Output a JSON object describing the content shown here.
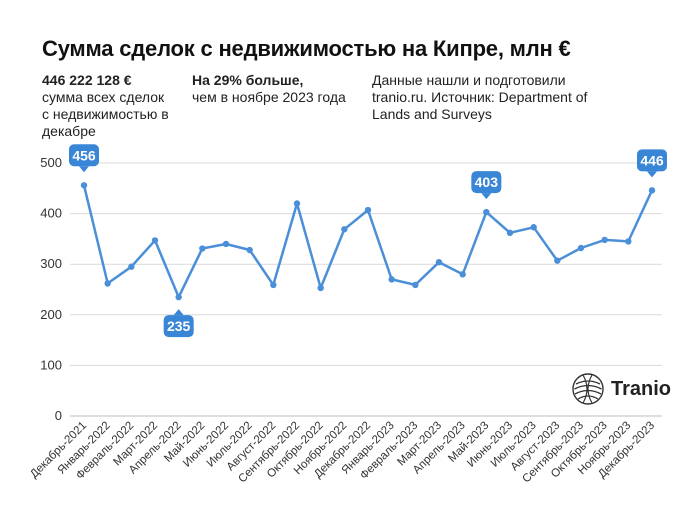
{
  "header": {
    "title": "Сумма сделок с недвижимостью на Кипре, млн €"
  },
  "info": {
    "total_value": "446 222 128 €",
    "total_desc": "сумма всех сделок с недвижимостью в декабре",
    "change_value": "На 29% больше,",
    "change_desc": "чем в ноябре 2023 года",
    "source": "Данные нашли и подготовили tranio.ru. Источник: Department of Lands and Surveys"
  },
  "brand": {
    "name": "Tranio"
  },
  "colors": {
    "line": "#4a8fd8",
    "callout": "#3a86d6",
    "grid": "#d9d9d9"
  },
  "chart_data": {
    "type": "line",
    "title": "Сумма сделок с недвижимостью на Кипре, млн €",
    "xlabel": "",
    "ylabel": "",
    "ylim": [
      0,
      500
    ],
    "yticks": [
      0,
      100,
      200,
      300,
      400,
      500
    ],
    "grid": true,
    "categories": [
      "Декабрь-2021",
      "Январь-2022",
      "Февраль-2022",
      "Март-2022",
      "Апрель-2022",
      "Май-2022",
      "Июнь-2022",
      "Июль-2022",
      "Август-2022",
      "Сентябрь-2022",
      "Октябрь-2022",
      "Ноябрь-2022",
      "Декабрь-2022",
      "Январь-2023",
      "Февраль-2023",
      "Март-2023",
      "Апрель-2023",
      "Май-2023",
      "Июнь-2023",
      "Июль-2023",
      "Август-2023",
      "Сентябрь-2023",
      "Октябрь-2023",
      "Ноябрь-2023",
      "Декабрь-2023"
    ],
    "series": [
      {
        "name": "Сумма сделок, млн €",
        "values": [
          456,
          262,
          295,
          347,
          235,
          331,
          340,
          328,
          259,
          420,
          253,
          369,
          407,
          270,
          259,
          304,
          280,
          403,
          362,
          373,
          307,
          332,
          348,
          345,
          446
        ]
      }
    ],
    "annotations": [
      {
        "index": 0,
        "label": "456"
      },
      {
        "index": 4,
        "label": "235"
      },
      {
        "index": 17,
        "label": "403"
      },
      {
        "index": 24,
        "label": "446"
      }
    ]
  }
}
